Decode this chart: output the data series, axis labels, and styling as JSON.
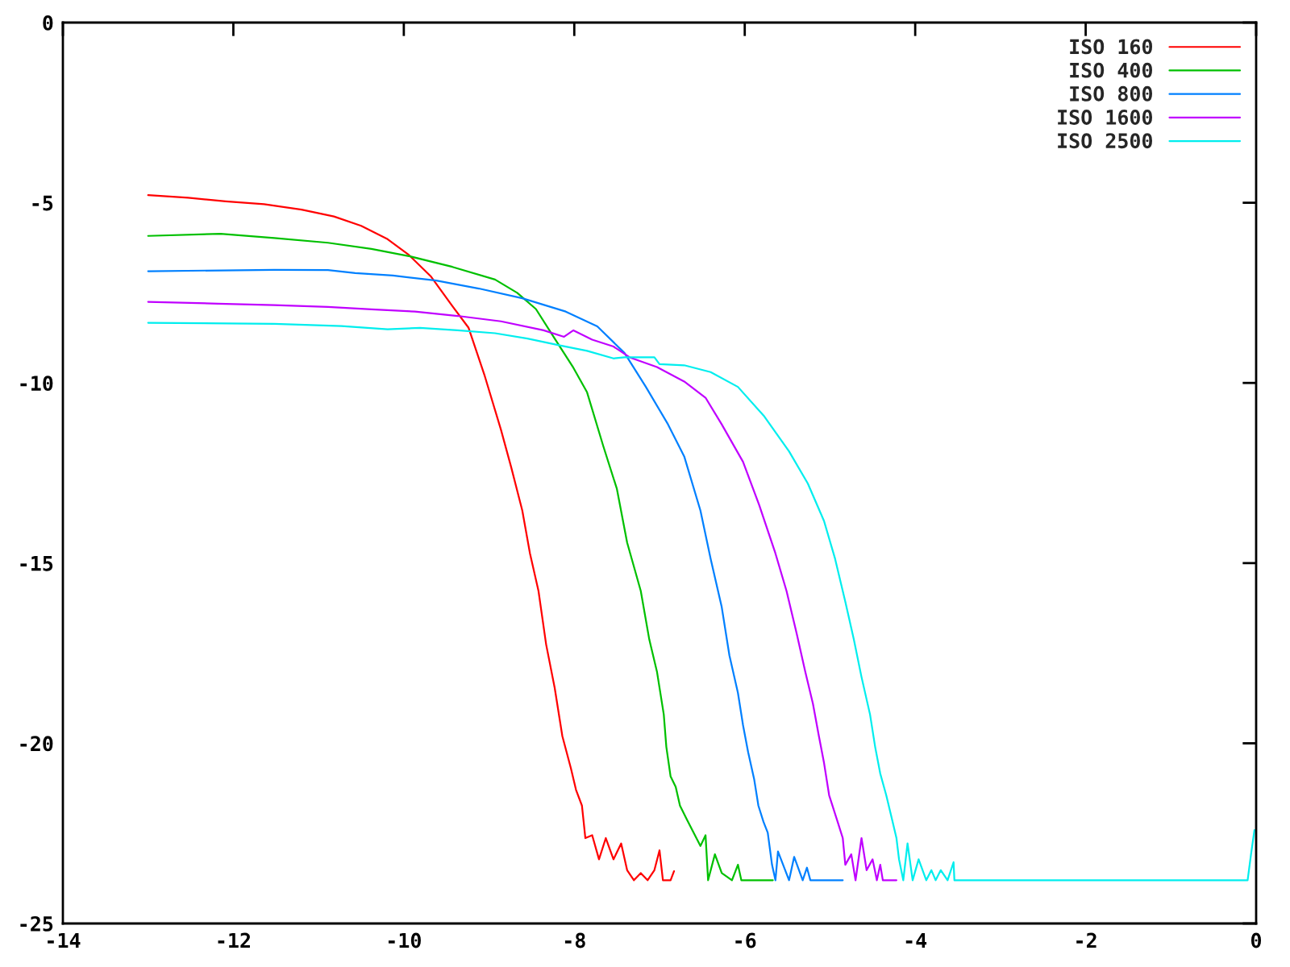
{
  "chart_data": {
    "type": "line",
    "xlim": [
      -14,
      0
    ],
    "xticks": [
      -14,
      -12,
      -10,
      -8,
      -6,
      -4,
      -2,
      0
    ],
    "ylim": [
      -25,
      0
    ],
    "yticks": [
      -25,
      -20,
      -15,
      -10,
      -5,
      0
    ],
    "grid": false,
    "legend": "top right",
    "line_style": "solid",
    "marker": "none",
    "series": [
      {
        "name": "ISO 160",
        "color": "#ff0000",
        "x": [
          -13,
          -12.53,
          -12.09,
          -11.64,
          -11.2,
          -10.82,
          -10.5,
          -10.19,
          -9.94,
          -9.68,
          -9.43,
          -9.24,
          -9.05,
          -8.86,
          -8.74,
          -8.61,
          -8.52,
          -8.42,
          -8.33,
          -8.23,
          -8.14,
          -8.04,
          -7.98,
          -7.91,
          -7.87,
          -7.79,
          -7.71,
          -7.63,
          -7.54,
          -7.45,
          -7.38,
          -7.3,
          -7.22,
          -7.14,
          -7.06,
          -7.0,
          -6.96,
          -6.87,
          -6.83
        ],
        "values": [
          -4.79,
          -4.86,
          -4.96,
          -5.04,
          -5.19,
          -5.38,
          -5.64,
          -6.01,
          -6.45,
          -7.05,
          -7.87,
          -8.47,
          -9.81,
          -11.3,
          -12.34,
          -13.54,
          -14.73,
          -15.77,
          -17.26,
          -18.46,
          -19.8,
          -20.69,
          -21.29,
          -21.73,
          -22.63,
          -22.55,
          -23.22,
          -22.63,
          -23.22,
          -22.78,
          -23.52,
          -23.8,
          -23.6,
          -23.8,
          -23.52,
          -22.97,
          -23.8,
          -23.8,
          -23.55
        ]
      },
      {
        "name": "ISO 400",
        "color": "#00c000",
        "x": [
          -13,
          -12.15,
          -11.52,
          -10.89,
          -10.38,
          -9.94,
          -9.43,
          -8.93,
          -8.67,
          -8.45,
          -8.23,
          -8.01,
          -7.85,
          -7.66,
          -7.5,
          -7.38,
          -7.22,
          -7.12,
          -7.03,
          -6.95,
          -6.92,
          -6.87,
          -6.81,
          -6.76,
          -6.68,
          -6.6,
          -6.52,
          -6.46,
          -6.43,
          -6.35,
          -6.27,
          -6.15,
          -6.08,
          -6.04,
          -5.67
        ],
        "values": [
          -5.92,
          -5.86,
          -5.98,
          -6.11,
          -6.28,
          -6.48,
          -6.78,
          -7.13,
          -7.5,
          -7.95,
          -8.77,
          -9.58,
          -10.26,
          -11.75,
          -12.94,
          -14.43,
          -15.77,
          -17.12,
          -18.01,
          -19.2,
          -20.1,
          -20.92,
          -21.21,
          -21.73,
          -22.11,
          -22.48,
          -22.85,
          -22.55,
          -23.8,
          -23.08,
          -23.6,
          -23.8,
          -23.37,
          -23.8,
          -23.8
        ]
      },
      {
        "name": "ISO 800",
        "color": "#0080ff",
        "x": [
          -13,
          -11.52,
          -10.89,
          -10.57,
          -10.13,
          -9.62,
          -9.12,
          -8.61,
          -8.1,
          -7.73,
          -7.41,
          -7.16,
          -6.9,
          -6.71,
          -6.52,
          -6.4,
          -6.27,
          -6.18,
          -6.08,
          -6.02,
          -5.96,
          -5.89,
          -5.84,
          -5.78,
          -5.73,
          -5.68,
          -5.64,
          -5.61,
          -5.55,
          -5.48,
          -5.42,
          -5.32,
          -5.27,
          -5.23,
          -4.85
        ],
        "values": [
          -6.9,
          -6.86,
          -6.87,
          -6.95,
          -7.02,
          -7.16,
          -7.38,
          -7.65,
          -8.02,
          -8.43,
          -9.17,
          -10.11,
          -11.15,
          -12.04,
          -13.54,
          -14.88,
          -16.22,
          -17.56,
          -18.6,
          -19.5,
          -20.25,
          -20.99,
          -21.73,
          -22.18,
          -22.48,
          -23.37,
          -23.8,
          -23.0,
          -23.37,
          -23.8,
          -23.15,
          -23.8,
          -23.45,
          -23.8,
          -23.8
        ]
      },
      {
        "name": "ISO 1600",
        "color": "#c000ff",
        "x": [
          -13,
          -12.18,
          -11.52,
          -10.89,
          -10.38,
          -9.87,
          -9.37,
          -8.86,
          -8.36,
          -8.12,
          -8.01,
          -7.79,
          -7.54,
          -7.35,
          -7.03,
          -6.71,
          -6.46,
          -6.27,
          -6.02,
          -5.83,
          -5.64,
          -5.51,
          -5.39,
          -5.29,
          -5.2,
          -5.13,
          -5.07,
          -5.01,
          -4.91,
          -4.85,
          -4.82,
          -4.75,
          -4.7,
          -4.63,
          -4.57,
          -4.5,
          -4.45,
          -4.41,
          -4.38,
          -4.22
        ],
        "values": [
          -7.75,
          -7.8,
          -7.84,
          -7.89,
          -7.96,
          -8.02,
          -8.14,
          -8.29,
          -8.54,
          -8.72,
          -8.54,
          -8.8,
          -8.99,
          -9.29,
          -9.56,
          -9.96,
          -10.41,
          -11.15,
          -12.19,
          -13.39,
          -14.73,
          -15.77,
          -16.96,
          -18.01,
          -18.9,
          -19.8,
          -20.54,
          -21.44,
          -22.18,
          -22.63,
          -23.37,
          -23.08,
          -23.8,
          -22.63,
          -23.52,
          -23.22,
          -23.8,
          -23.37,
          -23.8,
          -23.8
        ]
      },
      {
        "name": "ISO 2500",
        "color": "#00eeee",
        "x": [
          -13,
          -11.52,
          -10.73,
          -10.19,
          -9.81,
          -9.37,
          -8.93,
          -8.55,
          -8.17,
          -7.85,
          -7.54,
          -7.41,
          -7.06,
          -7.0,
          -6.71,
          -6.4,
          -6.08,
          -5.77,
          -5.48,
          -5.26,
          -5.07,
          -4.94,
          -4.82,
          -4.72,
          -4.63,
          -4.53,
          -4.47,
          -4.41,
          -4.34,
          -4.28,
          -4.22,
          -4.19,
          -4.14,
          -4.09,
          -4.03,
          -3.96,
          -3.87,
          -3.81,
          -3.76,
          -3.7,
          -3.62,
          -3.55,
          -3.54,
          -0.1,
          -0.06,
          -0.02
        ],
        "values": [
          -8.33,
          -8.36,
          -8.42,
          -8.51,
          -8.47,
          -8.54,
          -8.62,
          -8.77,
          -8.96,
          -9.11,
          -9.32,
          -9.29,
          -9.29,
          -9.48,
          -9.51,
          -9.7,
          -10.11,
          -10.93,
          -11.9,
          -12.79,
          -13.83,
          -14.88,
          -16.07,
          -17.12,
          -18.16,
          -19.2,
          -20.1,
          -20.84,
          -21.44,
          -22.03,
          -22.63,
          -23.22,
          -23.8,
          -22.78,
          -23.8,
          -23.22,
          -23.8,
          -23.52,
          -23.8,
          -23.52,
          -23.8,
          -23.3,
          -23.8,
          -23.8,
          -23.08,
          -22.41
        ]
      }
    ]
  }
}
